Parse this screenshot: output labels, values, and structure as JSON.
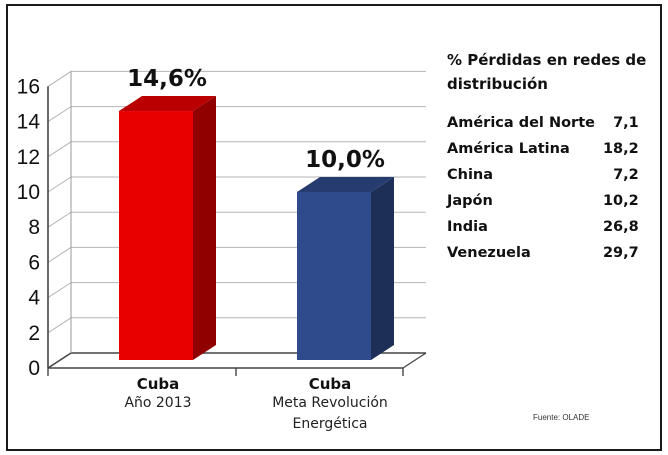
{
  "chart_data": {
    "type": "bar",
    "categories": [
      "Cuba",
      "Cuba"
    ],
    "category_subtitles": [
      [
        "Año 2013"
      ],
      [
        "Meta Revolución",
        "Energética"
      ]
    ],
    "values": [
      14.6,
      10.0
    ],
    "data_labels": [
      "14,6%",
      "10,0%"
    ],
    "bar_colors": [
      "#e80000",
      "#2f4b8c"
    ],
    "ylim": [
      0,
      16
    ],
    "yticks": [
      "0",
      "2",
      "4",
      "6",
      "8",
      "10",
      "12",
      "14",
      "16"
    ],
    "grid": true,
    "style": "3d"
  },
  "side_panel": {
    "title_lines": [
      "% Pérdidas en redes de",
      "distribución"
    ],
    "rows": [
      {
        "region": "América del Norte",
        "value": "7,1"
      },
      {
        "region": "América Latina",
        "value": "18,2"
      },
      {
        "region": "China",
        "value": "7,2"
      },
      {
        "region": "Japón",
        "value": "10,2"
      },
      {
        "region": "India",
        "value": "26,8"
      },
      {
        "region": "Venezuela",
        "value": "29,7"
      }
    ]
  },
  "source": "Fuente: OLADE"
}
